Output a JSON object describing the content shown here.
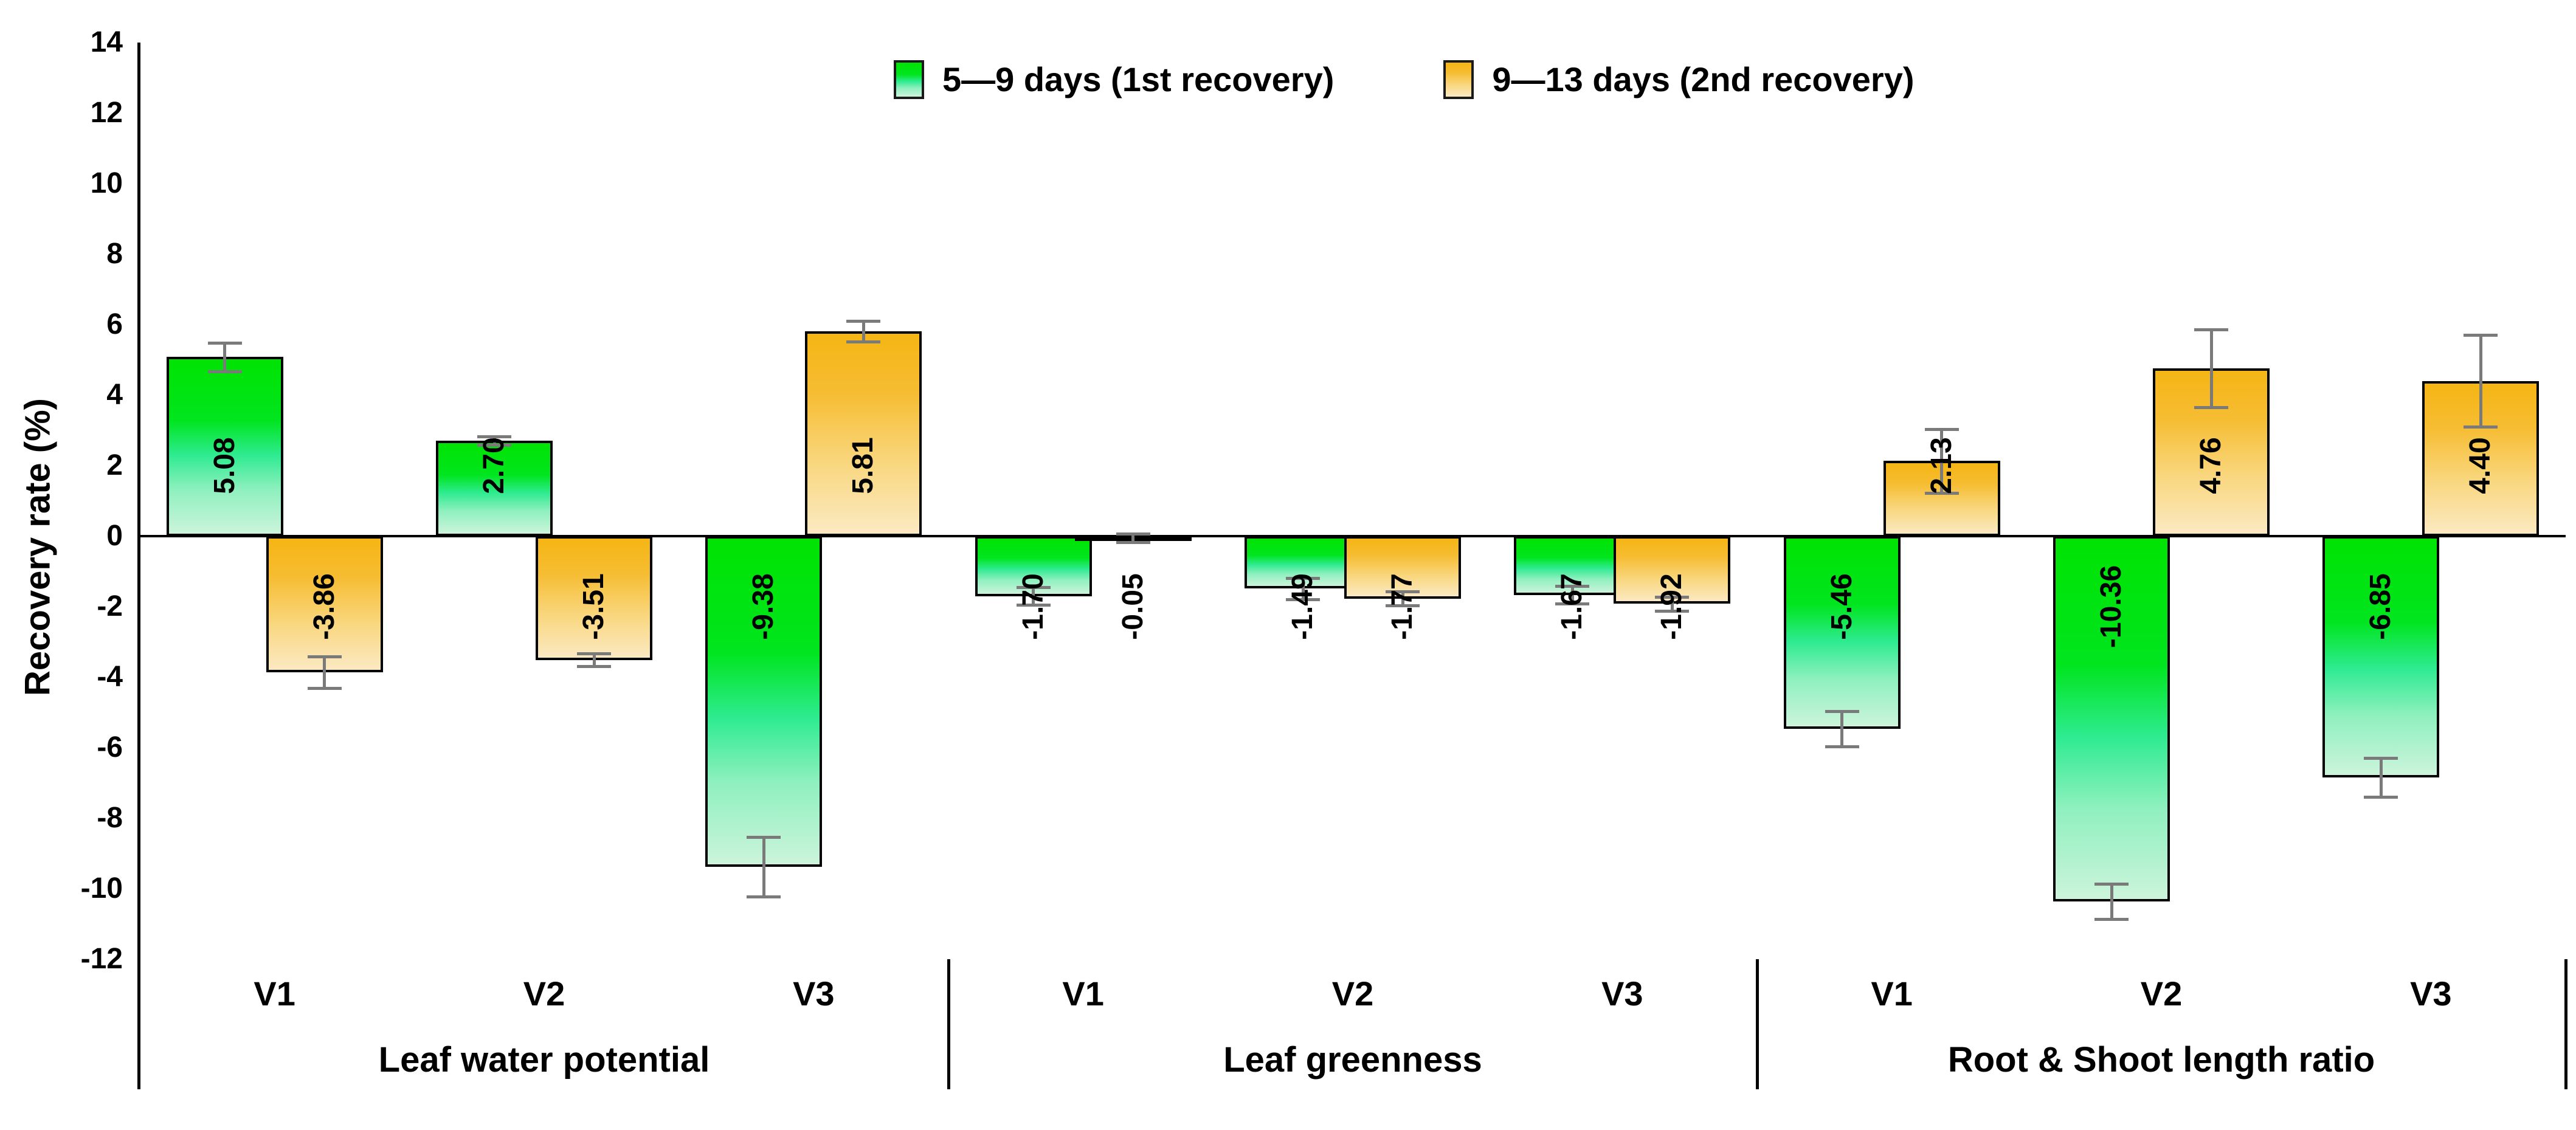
{
  "axis": {
    "ylabel": "Recovery rate (%)"
  },
  "chart_data": {
    "type": "bar",
    "title": "",
    "xlabel": "",
    "ylabel": "Recovery rate (%)",
    "ylim": [
      -12,
      14
    ],
    "ytick_step": 2,
    "yticks": [
      14,
      12,
      10,
      8,
      6,
      4,
      2,
      0,
      -2,
      -4,
      -6,
      -8,
      -10,
      -12
    ],
    "grid": false,
    "legend_position": "top-center",
    "series_meta": [
      {
        "name": "5—9 days (1st recovery)",
        "swatch": "green-gradient",
        "color_top": "#00e303",
        "color_bottom": "#ccf4db"
      },
      {
        "name": "9—13 days (2nd recovery)",
        "swatch": "orange-gradient",
        "color_top": "#f5b514",
        "color_bottom": "#fbe9c2"
      }
    ],
    "error_bar_color": "#7a7a7a",
    "bar_border_color": "#000000",
    "groups": [
      {
        "label": "Leaf water potential",
        "categories": [
          "V1",
          "V2",
          "V3"
        ],
        "series": [
          {
            "name": "5—9 days (1st recovery)",
            "values": [
              5.08,
              2.7,
              -9.38
            ],
            "labels": [
              "5.08",
              "2.70",
              "-9.38"
            ],
            "errors": [
              0.4,
              0.12,
              0.85
            ]
          },
          {
            "name": "9—13 days (2nd recovery)",
            "values": [
              -3.86,
              -3.51,
              5.81
            ],
            "labels": [
              "-3.86",
              "-3.51",
              "5.81"
            ],
            "errors": [
              0.45,
              0.18,
              0.3
            ]
          }
        ]
      },
      {
        "label": "Leaf greenness",
        "categories": [
          "V1",
          "V2",
          "V3"
        ],
        "series": [
          {
            "name": "5—9 days (1st recovery)",
            "values": [
              -1.7,
              -1.49,
              -1.67
            ],
            "labels": [
              "-1.70",
              "-1.49",
              "-1.67"
            ],
            "errors": [
              0.25,
              0.3,
              0.25
            ]
          },
          {
            "name": "9—13 days (2nd recovery)",
            "values": [
              -0.05,
              -1.77,
              -1.92
            ],
            "labels": [
              "-0.05",
              "-1.77",
              "-1.92"
            ],
            "errors": [
              0.12,
              0.2,
              0.2
            ]
          }
        ]
      },
      {
        "label": "Root & Shoot length ratio",
        "categories": [
          "V1",
          "V2",
          "V3"
        ],
        "series": [
          {
            "name": "5—9 days (1st recovery)",
            "values": [
              -5.46,
              -10.36,
              -6.85
            ],
            "labels": [
              "-5.46",
              "-10.36",
              "-6.85"
            ],
            "errors": [
              0.5,
              0.5,
              0.55
            ]
          },
          {
            "name": "9—13 days (2nd recovery)",
            "values": [
              2.13,
              4.76,
              4.4
            ],
            "labels": [
              "2.13",
              "4.76",
              "4.40"
            ],
            "errors": [
              0.9,
              1.1,
              1.3
            ]
          }
        ]
      }
    ]
  }
}
